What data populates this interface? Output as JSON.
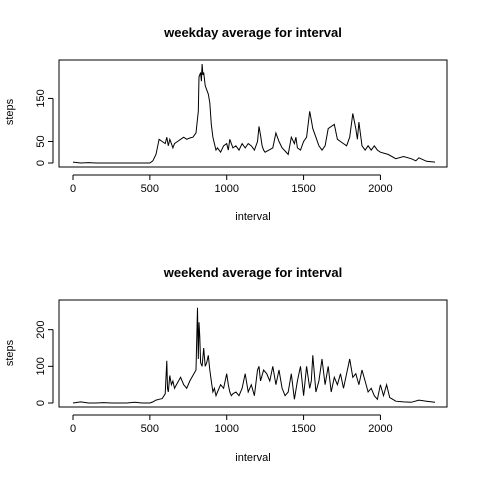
{
  "chart_data": [
    {
      "type": "line",
      "title": "weekday average for interval",
      "xlabel": "interval",
      "ylabel": "steps",
      "xlim": [
        0,
        2355
      ],
      "ylim": [
        0,
        230
      ],
      "xticks": [
        "0",
        "500",
        "1000",
        "1500",
        "2000"
      ],
      "xtick_values": [
        0,
        500,
        1000,
        1500,
        2000
      ],
      "yticks": [
        "0",
        "50",
        "150"
      ],
      "ytick_values": [
        0,
        50,
        150
      ],
      "grid": false,
      "legend": "none",
      "series": [
        {
          "x": [
            0,
            50,
            100,
            150,
            200,
            250,
            300,
            350,
            400,
            450,
            500,
            520,
            540,
            560,
            580,
            600,
            610,
            620,
            630,
            640,
            650,
            660,
            680,
            700,
            720,
            740,
            760,
            780,
            800,
            815,
            820,
            830,
            835,
            840,
            845,
            850,
            860,
            870,
            880,
            890,
            900,
            910,
            920,
            930,
            940,
            960,
            980,
            1000,
            1010,
            1020,
            1040,
            1060,
            1080,
            1100,
            1120,
            1140,
            1160,
            1180,
            1200,
            1210,
            1220,
            1230,
            1240,
            1250,
            1300,
            1320,
            1340,
            1360,
            1400,
            1420,
            1440,
            1450,
            1460,
            1480,
            1500,
            1520,
            1540,
            1550,
            1560,
            1580,
            1600,
            1620,
            1640,
            1660,
            1700,
            1720,
            1740,
            1760,
            1780,
            1800,
            1820,
            1840,
            1850,
            1860,
            1880,
            1900,
            1920,
            1940,
            1960,
            1980,
            2000,
            2050,
            2100,
            2150,
            2200,
            2230,
            2250,
            2300,
            2355
          ],
          "y": [
            2,
            0,
            1,
            0,
            0,
            0,
            0,
            0,
            0,
            0,
            0,
            5,
            20,
            55,
            50,
            45,
            60,
            40,
            55,
            45,
            35,
            45,
            50,
            55,
            60,
            55,
            58,
            60,
            70,
            120,
            200,
            210,
            190,
            230,
            205,
            210,
            180,
            170,
            160,
            140,
            90,
            60,
            45,
            30,
            35,
            25,
            40,
            45,
            30,
            55,
            35,
            40,
            30,
            45,
            35,
            45,
            40,
            30,
            50,
            85,
            65,
            40,
            30,
            25,
            35,
            70,
            50,
            35,
            20,
            60,
            45,
            60,
            35,
            30,
            50,
            60,
            120,
            100,
            80,
            60,
            40,
            30,
            40,
            80,
            90,
            55,
            50,
            45,
            40,
            60,
            115,
            80,
            55,
            95,
            40,
            30,
            40,
            30,
            40,
            30,
            25,
            20,
            10,
            15,
            10,
            5,
            12,
            4,
            2
          ]
        }
      ]
    },
    {
      "type": "line",
      "title": "weekend average for interval",
      "xlabel": "interval",
      "ylabel": "steps",
      "xlim": [
        0,
        2355
      ],
      "ylim": [
        0,
        270
      ],
      "xticks": [
        "0",
        "500",
        "1000",
        "1500",
        "2000"
      ],
      "xtick_values": [
        0,
        500,
        1000,
        1500,
        2000
      ],
      "yticks": [
        "0",
        "100",
        "200"
      ],
      "ytick_values": [
        0,
        100,
        200
      ],
      "grid": false,
      "legend": "none",
      "series": [
        {
          "x": [
            0,
            50,
            100,
            150,
            200,
            250,
            300,
            350,
            400,
            450,
            500,
            520,
            540,
            560,
            580,
            600,
            610,
            615,
            620,
            630,
            640,
            650,
            660,
            680,
            700,
            720,
            740,
            760,
            780,
            800,
            810,
            815,
            820,
            825,
            830,
            840,
            850,
            860,
            870,
            880,
            890,
            900,
            910,
            920,
            930,
            940,
            960,
            980,
            1000,
            1010,
            1020,
            1030,
            1040,
            1060,
            1080,
            1100,
            1120,
            1140,
            1160,
            1180,
            1200,
            1210,
            1220,
            1240,
            1260,
            1280,
            1300,
            1320,
            1340,
            1360,
            1380,
            1400,
            1420,
            1440,
            1460,
            1480,
            1500,
            1520,
            1540,
            1550,
            1560,
            1580,
            1600,
            1620,
            1640,
            1660,
            1680,
            1700,
            1720,
            1740,
            1760,
            1780,
            1800,
            1820,
            1840,
            1860,
            1880,
            1900,
            1920,
            1940,
            1960,
            1980,
            2000,
            2020,
            2040,
            2060,
            2080,
            2100,
            2150,
            2200,
            2250,
            2300,
            2355
          ],
          "y": [
            0,
            3,
            0,
            0,
            1,
            0,
            0,
            0,
            2,
            0,
            0,
            3,
            8,
            10,
            12,
            25,
            115,
            40,
            30,
            75,
            50,
            60,
            40,
            55,
            70,
            50,
            40,
            60,
            75,
            90,
            260,
            120,
            220,
            180,
            110,
            100,
            150,
            100,
            110,
            130,
            90,
            60,
            30,
            40,
            20,
            30,
            50,
            40,
            80,
            50,
            30,
            20,
            25,
            30,
            20,
            40,
            80,
            30,
            50,
            20,
            90,
            100,
            60,
            90,
            80,
            60,
            100,
            50,
            90,
            40,
            20,
            30,
            80,
            10,
            60,
            100,
            20,
            100,
            40,
            60,
            130,
            30,
            60,
            120,
            50,
            100,
            30,
            70,
            50,
            80,
            40,
            80,
            120,
            70,
            80,
            50,
            90,
            60,
            30,
            40,
            20,
            10,
            50,
            20,
            50,
            15,
            10,
            5,
            3,
            2,
            8,
            5,
            2
          ]
        }
      ]
    }
  ]
}
